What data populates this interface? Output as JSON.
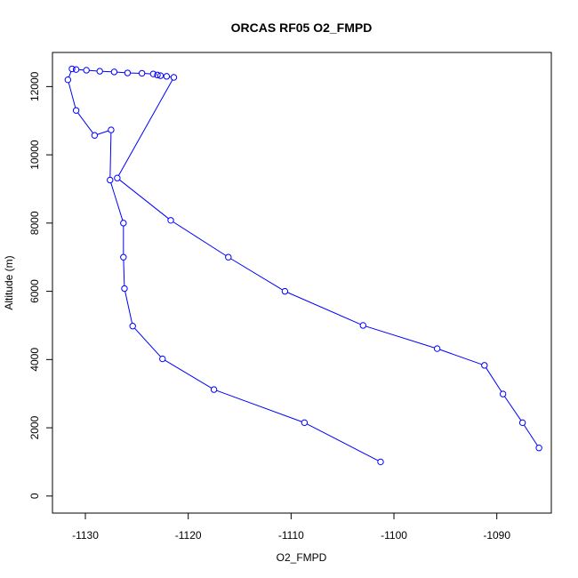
{
  "chart_data": {
    "type": "line",
    "title": "ORCAS RF05 O2_FMPD",
    "xlabel": "O2_FMPD",
    "ylabel": "Altitude (m)",
    "xlim": [
      -1133.2,
      -1084.7
    ],
    "ylim": [
      -500,
      13000
    ],
    "x_ticks": [
      -1130,
      -1120,
      -1110,
      -1100,
      -1090
    ],
    "y_ticks": [
      0,
      2000,
      4000,
      6000,
      8000,
      10000,
      12000
    ],
    "grid": false,
    "legend": "none",
    "series_color": "#0000ff",
    "marker": "open-circle",
    "points": [
      {
        "x": -1101.3,
        "y": 1000
      },
      {
        "x": -1108.7,
        "y": 2150
      },
      {
        "x": -1117.5,
        "y": 3120
      },
      {
        "x": -1122.5,
        "y": 4020
      },
      {
        "x": -1125.4,
        "y": 4980
      },
      {
        "x": -1126.2,
        "y": 6080
      },
      {
        "x": -1126.3,
        "y": 7000
      },
      {
        "x": -1126.3,
        "y": 8000
      },
      {
        "x": -1127.6,
        "y": 9260
      },
      {
        "x": -1127.5,
        "y": 10730
      },
      {
        "x": -1129.1,
        "y": 10570
      },
      {
        "x": -1130.9,
        "y": 11300
      },
      {
        "x": -1131.7,
        "y": 12200
      },
      {
        "x": -1131.3,
        "y": 12520
      },
      {
        "x": -1130.9,
        "y": 12500
      },
      {
        "x": -1129.9,
        "y": 12480
      },
      {
        "x": -1128.6,
        "y": 12450
      },
      {
        "x": -1127.2,
        "y": 12430
      },
      {
        "x": -1125.9,
        "y": 12400
      },
      {
        "x": -1124.5,
        "y": 12390
      },
      {
        "x": -1123.4,
        "y": 12370
      },
      {
        "x": -1123.0,
        "y": 12340
      },
      {
        "x": -1122.7,
        "y": 12320
      },
      {
        "x": -1122.1,
        "y": 12300
      },
      {
        "x": -1121.4,
        "y": 12270
      },
      {
        "x": -1126.9,
        "y": 9320
      },
      {
        "x": -1121.7,
        "y": 8080
      },
      {
        "x": -1116.1,
        "y": 7000
      },
      {
        "x": -1110.6,
        "y": 6000
      },
      {
        "x": -1103.0,
        "y": 5000
      },
      {
        "x": -1095.8,
        "y": 4320
      },
      {
        "x": -1091.2,
        "y": 3830
      },
      {
        "x": -1089.4,
        "y": 2990
      },
      {
        "x": -1087.5,
        "y": 2150
      },
      {
        "x": -1085.9,
        "y": 1410
      }
    ]
  }
}
